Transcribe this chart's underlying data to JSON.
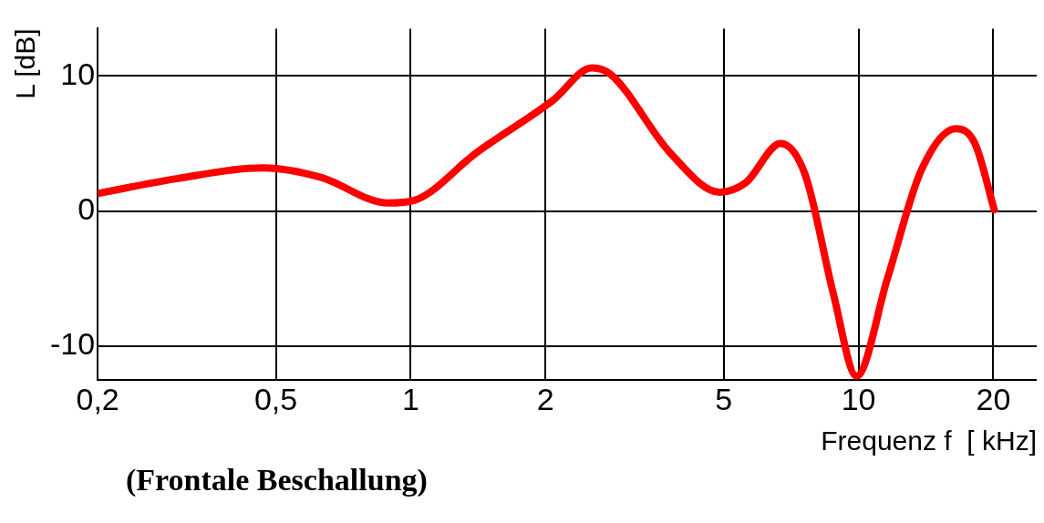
{
  "chart_data": {
    "type": "line",
    "xlabel": "Frequenz f  [ kHz]",
    "ylabel": "L [dB]",
    "annotations": [
      "(Frontale Beschallung)"
    ],
    "x": [
      0.2,
      0.3,
      0.47,
      0.63,
      0.89,
      1.02,
      1.4,
      2.08,
      2.54,
      2.8,
      3.8,
      4.9,
      5.6,
      6.7,
      7.6,
      8.8,
      9.9,
      11.6,
      13.8,
      16.5,
      18.2,
      20.1
    ],
    "series": [
      {
        "color": "#ff0000",
        "values": [
          1.3,
          2.4,
          3.2,
          2.5,
          0.6,
          0.8,
          4.3,
          8.2,
          10.6,
          10.1,
          4.3,
          1.4,
          2.1,
          5.0,
          2.7,
          -6.2,
          -12.2,
          -5.0,
          3.0,
          6.1,
          5.0,
          0.1
        ]
      }
    ],
    "log": "x",
    "xlim": [
      0.2,
      25
    ],
    "xticks": [
      {
        "value": 0.2,
        "label": "0,2"
      },
      {
        "value": 0.5,
        "label": "0,5"
      },
      1,
      2,
      5,
      10,
      20
    ],
    "ylim": [
      -12.5,
      13.5
    ],
    "yticks": [
      -10,
      0,
      10
    ],
    "grid": true,
    "legend": false,
    "marker": "none",
    "line_style": "solid"
  }
}
